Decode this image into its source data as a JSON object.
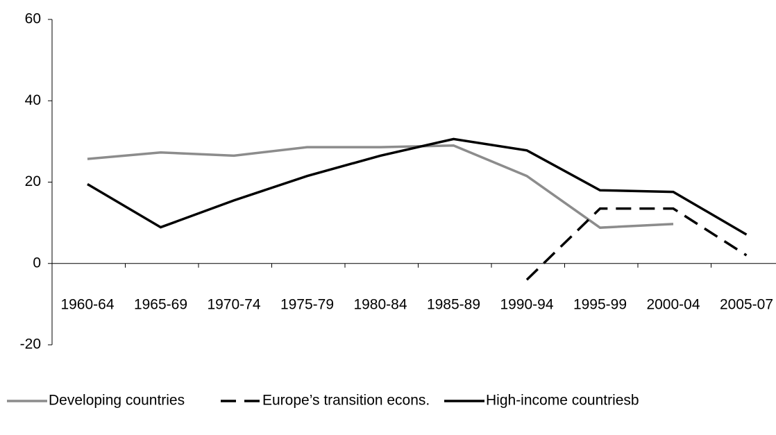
{
  "chart_data": {
    "type": "line",
    "categories": [
      "1960-64",
      "1965-69",
      "1970-74",
      "1975-79",
      "1980-84",
      "1985-89",
      "1990-94",
      "1995-99",
      "2000-04",
      "2005-07"
    ],
    "series": [
      {
        "name": "Developing countries",
        "color": "#8c8c8c",
        "dash": "solid",
        "values": [
          25.7,
          27.3,
          26.5,
          28.6,
          28.6,
          29.0,
          21.5,
          8.8,
          9.7,
          null
        ]
      },
      {
        "name": "Europe’s transition econs.",
        "color": "#000000",
        "dash": "dashed",
        "values": [
          null,
          null,
          null,
          null,
          null,
          null,
          -4.0,
          13.5,
          13.5,
          2.0
        ]
      },
      {
        "name": "High-income countriesb",
        "color": "#000000",
        "dash": "solid",
        "values": [
          19.5,
          8.9,
          15.5,
          21.5,
          26.5,
          30.6,
          27.8,
          18.0,
          17.6,
          7.1
        ]
      }
    ],
    "ylim": [
      -20,
      60
    ],
    "yticks": [
      -20,
      0,
      20,
      40,
      60
    ],
    "grid": false,
    "legend": "bottom"
  }
}
